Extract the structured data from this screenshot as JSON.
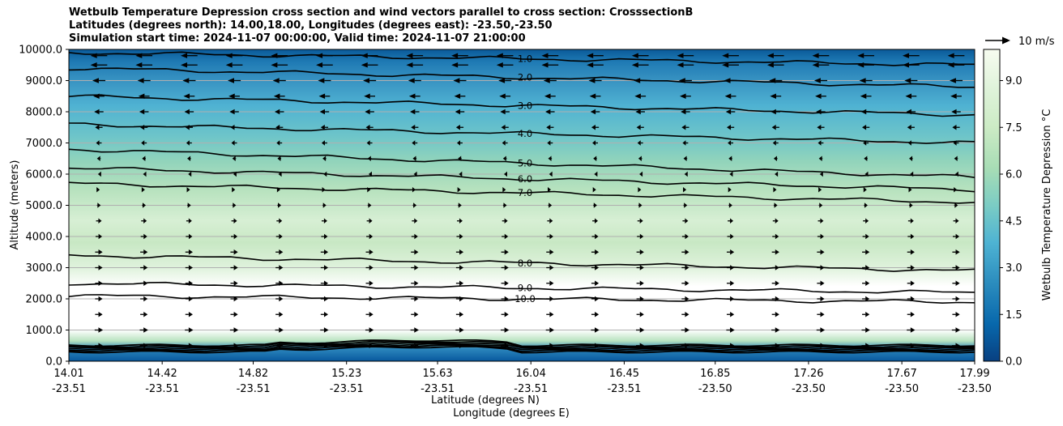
{
  "title_lines": [
    "Wetbulb Temperature Depression cross section and wind vectors parallel to cross section: CrosssectionB",
    "Latitudes (degrees north): 14.00,18.00, Longitudes (degrees east): -23.50,-23.50",
    "Simulation start time: 2024-11-07 00:00:00, Valid time: 2024-11-07 21:00:00"
  ],
  "chart_data": {
    "type": "heatmap",
    "ylabel": "Altitude (meters)",
    "xlabel_lat": "Latitude (degrees N)",
    "xlabel_lon": "Longitude (degrees E)",
    "ylim": [
      0,
      10000
    ],
    "y_ticks": [
      "0.0",
      "1000.0",
      "2000.0",
      "3000.0",
      "4000.0",
      "5000.0",
      "6000.0",
      "7000.0",
      "8000.0",
      "9000.0",
      "10000.0"
    ],
    "x_ticks_lat": [
      "14.01",
      "14.42",
      "14.82",
      "15.23",
      "15.63",
      "16.04",
      "16.45",
      "16.85",
      "17.26",
      "17.67",
      "17.99"
    ],
    "x_ticks_lon": [
      "-23.51",
      "-23.51",
      "-23.51",
      "-23.51",
      "-23.51",
      "-23.51",
      "-23.51",
      "-23.50",
      "-23.50",
      "-23.50",
      "-23.50"
    ],
    "grid": "horizontal",
    "colorbar": {
      "label": "Wetbulb Temperature Depression °C",
      "range": [
        0.0,
        10.0
      ],
      "ticks": [
        "0.0",
        "1.5",
        "3.0",
        "4.5",
        "6.0",
        "7.5",
        "9.0"
      ],
      "colormap": "GnBu_r"
    },
    "contours": [
      {
        "label": "1.0",
        "level": 1.0,
        "altitude_left": 9900,
        "altitude_right": 9500
      },
      {
        "label": "2.0",
        "level": 2.0,
        "altitude_left": 9400,
        "altitude_right": 8800
      },
      {
        "label": "3.0",
        "level": 3.0,
        "altitude_left": 8500,
        "altitude_right": 7900
      },
      {
        "label": "4.0",
        "level": 4.0,
        "altitude_left": 7600,
        "altitude_right": 7000
      },
      {
        "label": "5.0",
        "level": 5.0,
        "altitude_left": 6800,
        "altitude_right": 5900
      },
      {
        "label": "6.0",
        "level": 6.0,
        "altitude_left": 6200,
        "altitude_right": 5500
      },
      {
        "label": "7.0",
        "level": 7.0,
        "altitude_left": 5700,
        "altitude_right": 5100
      },
      {
        "label": "8.0",
        "level": 8.0,
        "altitude_left": 3400,
        "altitude_right": 2900
      },
      {
        "label": "9.0",
        "level": 9.0,
        "altitude_left": 2500,
        "altitude_right": 2200
      },
      {
        "label": "10.0",
        "level": 10.0,
        "altitude_left": 2100,
        "altitude_right": 1900
      }
    ],
    "wind_key": {
      "label": "10 m/s",
      "speed": 10
    },
    "wind_profile": [
      {
        "altitude": 9800,
        "u": -9
      },
      {
        "altitude": 9500,
        "u": -9
      },
      {
        "altitude": 9000,
        "u": -7
      },
      {
        "altitude": 8500,
        "u": -6
      },
      {
        "altitude": 8000,
        "u": -5
      },
      {
        "altitude": 7500,
        "u": -4
      },
      {
        "altitude": 7000,
        "u": -3
      },
      {
        "altitude": 6500,
        "u": -2
      },
      {
        "altitude": 6000,
        "u": -1
      },
      {
        "altitude": 5500,
        "u": 1
      },
      {
        "altitude": 5000,
        "u": 2
      },
      {
        "altitude": 4500,
        "u": 3
      },
      {
        "altitude": 4000,
        "u": 3.5
      },
      {
        "altitude": 3500,
        "u": 4
      },
      {
        "altitude": 3000,
        "u": 4
      },
      {
        "altitude": 2500,
        "u": 4
      },
      {
        "altitude": 2000,
        "u": 4
      },
      {
        "altitude": 1500,
        "u": 4
      },
      {
        "altitude": 1000,
        "u": 4.5
      },
      {
        "altitude": 500,
        "u": 4.5
      }
    ]
  }
}
